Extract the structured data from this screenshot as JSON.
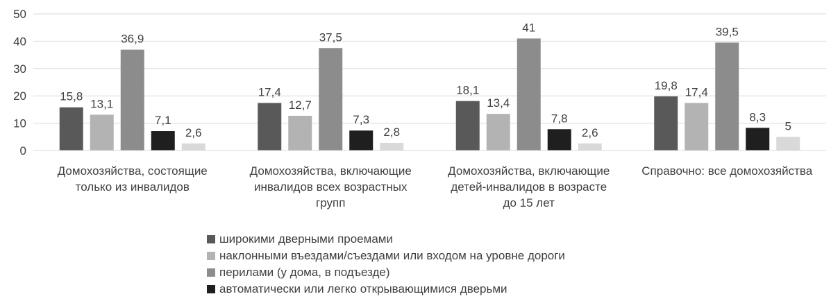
{
  "chart_data": {
    "type": "bar",
    "categories": [
      [
        "Домохозяйства, состоящие",
        "только из инвалидов"
      ],
      [
        "Домохозяйства, включающие",
        "инвалидов  всех возрастных",
        "групп"
      ],
      [
        "Домохозяйства, включающие",
        "детей-инвалидов в возрасте",
        "до 15 лет"
      ],
      [
        "Справочно: все домохозяйства"
      ]
    ],
    "series": [
      {
        "name": "широкими дверными проемами",
        "color": "#595959",
        "values": [
          15.8,
          17.4,
          18.1,
          19.8
        ]
      },
      {
        "name": "наклонными въездами/съездами или входом на уровне дороги",
        "color": "#b3b3b3",
        "values": [
          13.1,
          12.7,
          13.4,
          17.4
        ]
      },
      {
        "name": "перилами (у дома, в подъезде)",
        "color": "#8c8c8c",
        "values": [
          36.9,
          37.5,
          41,
          39.5
        ]
      },
      {
        "name": "автоматически или легко открывающимися дверьми",
        "color": "#1f1f1f",
        "values": [
          7.1,
          7.3,
          7.8,
          8.3
        ]
      },
      {
        "name": "",
        "color": "#d9d9d9",
        "values": [
          2.6,
          2.8,
          2.6,
          5
        ]
      }
    ],
    "value_labels": [
      [
        "15,8",
        "17,4",
        "18,1",
        "19,8"
      ],
      [
        "13,1",
        "12,7",
        "13,4",
        "17,4"
      ],
      [
        "36,9",
        "37,5",
        "41",
        "39,5"
      ],
      [
        "7,1",
        "7,3",
        "7,8",
        "8,3"
      ],
      [
        "2,6",
        "2,8",
        "2,6",
        "5"
      ]
    ],
    "yticks": [
      0,
      10,
      20,
      30,
      40,
      50
    ],
    "ylim": [
      0,
      50
    ],
    "grid": true,
    "legend_position": "bottom"
  }
}
